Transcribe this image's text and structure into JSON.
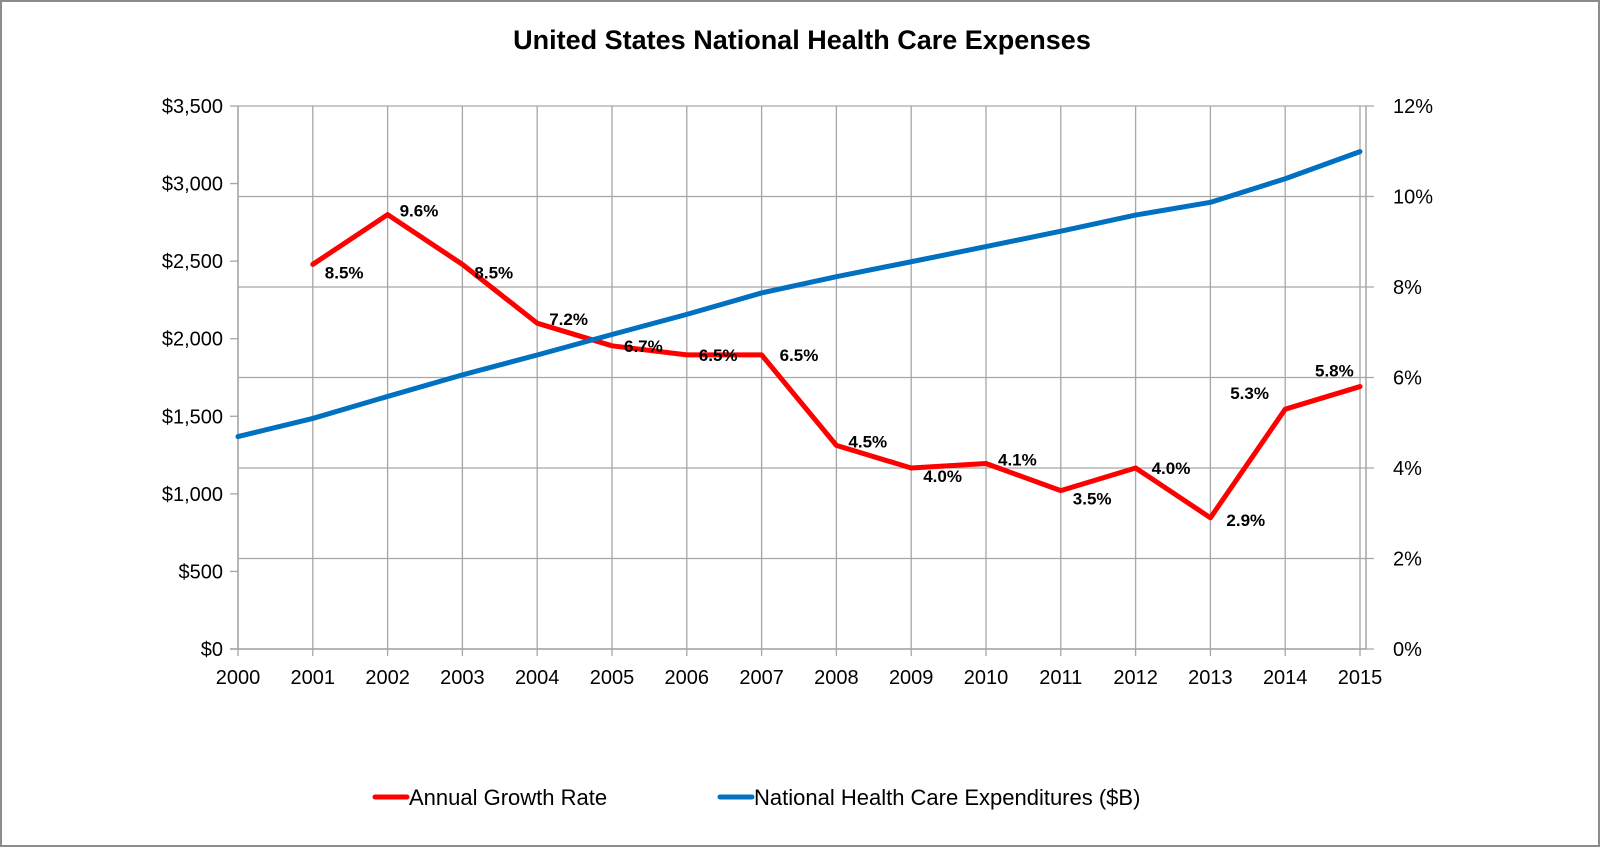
{
  "chart_data": {
    "type": "line",
    "title": "United States National Health Care Expenses",
    "x": [
      "2000",
      "2001",
      "2002",
      "2003",
      "2004",
      "2005",
      "2006",
      "2007",
      "2008",
      "2009",
      "2010",
      "2011",
      "2012",
      "2013",
      "2014",
      "2015"
    ],
    "xlabel": "",
    "ylabel_left": "",
    "ylabel_right": "",
    "ylim_left": [
      0,
      3500
    ],
    "ylim_right": [
      0,
      12
    ],
    "yticks_left": [
      "$0",
      "$500",
      "$1,000",
      "$1,500",
      "$2,000",
      "$2,500",
      "$3,000",
      "$3,500"
    ],
    "yticks_right": [
      "0%",
      "2%",
      "4%",
      "6%",
      "8%",
      "10%",
      "12%"
    ],
    "grid": {
      "vertical": true,
      "horizontal": "right-axis"
    },
    "legend_position": "bottom",
    "series": [
      {
        "name": "Annual Growth Rate",
        "axis": "right",
        "color": "#ff0000",
        "values": [
          null,
          8.5,
          9.6,
          8.5,
          7.2,
          6.7,
          6.5,
          6.5,
          4.5,
          4.0,
          4.1,
          3.5,
          4.0,
          2.9,
          5.3,
          5.8
        ],
        "labels": [
          null,
          "8.5%",
          "9.6%",
          "8.5%",
          "7.2%",
          "6.7%",
          "6.5%",
          "6.5%",
          "4.5%",
          "4.0%",
          "4.1%",
          "3.5%",
          "4.0%",
          "2.9%",
          "5.3%",
          "5.8%"
        ]
      },
      {
        "name": "National Health Care Expenditures ($B)",
        "axis": "left",
        "color": "#0070c0",
        "values": [
          1369,
          1486,
          1628,
          1767,
          1895,
          2027,
          2157,
          2295,
          2400,
          2496,
          2594,
          2693,
          2797,
          2879,
          3031,
          3206
        ]
      }
    ]
  }
}
